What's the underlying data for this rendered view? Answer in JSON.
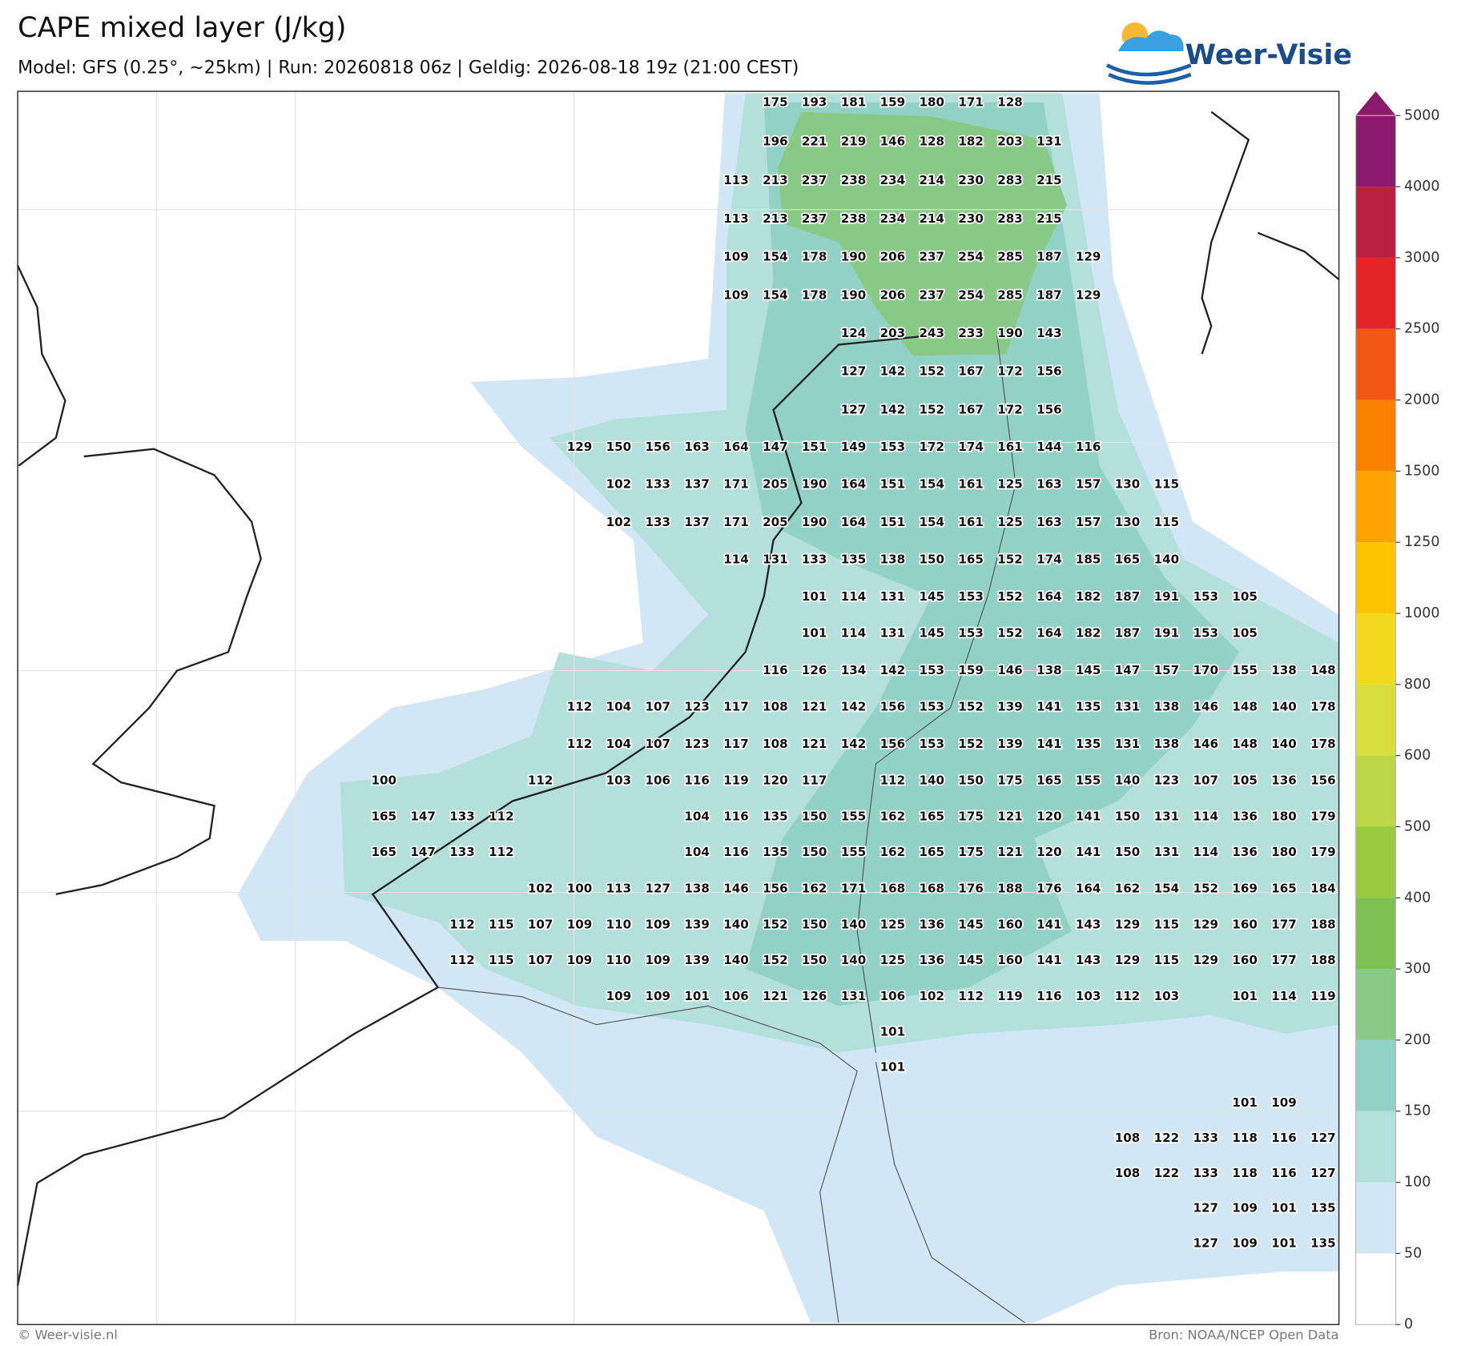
{
  "header": {
    "title": "CAPE mixed layer (J/kg)",
    "subtitle": "Model: GFS (0.25°, ~25km)  |  Run: 20260818 06z  |  Geldig: 2026-08-18 19z (21:00 CEST)",
    "logo": "Weer-Visie"
  },
  "map": {
    "rows": [
      [
        null,
        null,
        null,
        null,
        null,
        null,
        null,
        null,
        null,
        null,
        175,
        193,
        181,
        159,
        180,
        171,
        128
      ],
      [
        null,
        null,
        null,
        null,
        null,
        null,
        null,
        null,
        null,
        null,
        196,
        221,
        219,
        146,
        128,
        182,
        203,
        131
      ],
      [
        null,
        null,
        null,
        null,
        null,
        null,
        null,
        null,
        null,
        113,
        213,
        237,
        238,
        234,
        214,
        230,
        283,
        215
      ],
      [
        null,
        null,
        null,
        null,
        null,
        null,
        null,
        null,
        null,
        113,
        213,
        237,
        238,
        234,
        214,
        230,
        283,
        215
      ],
      [
        null,
        null,
        null,
        null,
        null,
        null,
        null,
        null,
        null,
        109,
        154,
        178,
        190,
        206,
        237,
        254,
        285,
        187,
        129
      ],
      [
        null,
        null,
        null,
        null,
        null,
        null,
        null,
        null,
        null,
        109,
        154,
        178,
        190,
        206,
        237,
        254,
        285,
        187,
        129
      ],
      [
        null,
        null,
        null,
        null,
        null,
        null,
        null,
        null,
        null,
        null,
        null,
        null,
        124,
        203,
        243,
        233,
        190,
        143
      ],
      [
        null,
        null,
        null,
        null,
        null,
        null,
        null,
        null,
        null,
        null,
        null,
        null,
        127,
        142,
        152,
        167,
        172,
        156
      ],
      [
        null,
        null,
        null,
        null,
        null,
        null,
        null,
        null,
        null,
        null,
        null,
        null,
        127,
        142,
        152,
        167,
        172,
        156
      ],
      [
        null,
        null,
        null,
        null,
        null,
        129,
        150,
        156,
        163,
        164,
        147,
        151,
        149,
        153,
        172,
        174,
        161,
        144,
        116
      ],
      [
        null,
        null,
        null,
        null,
        null,
        null,
        102,
        133,
        137,
        171,
        205,
        190,
        164,
        151,
        154,
        161,
        125,
        163,
        157,
        130,
        115
      ],
      [
        null,
        null,
        null,
        null,
        null,
        null,
        102,
        133,
        137,
        171,
        205,
        190,
        164,
        151,
        154,
        161,
        125,
        163,
        157,
        130,
        115
      ],
      [
        null,
        null,
        null,
        null,
        null,
        null,
        null,
        null,
        null,
        114,
        131,
        133,
        135,
        138,
        150,
        165,
        152,
        174,
        185,
        165,
        140
      ],
      [
        null,
        null,
        null,
        null,
        null,
        null,
        null,
        null,
        null,
        null,
        null,
        101,
        114,
        131,
        145,
        153,
        152,
        164,
        182,
        187,
        191,
        153,
        105
      ],
      [
        null,
        null,
        null,
        null,
        null,
        null,
        null,
        null,
        null,
        null,
        null,
        101,
        114,
        131,
        145,
        153,
        152,
        164,
        182,
        187,
        191,
        153,
        105
      ],
      [
        null,
        null,
        null,
        null,
        null,
        null,
        null,
        null,
        null,
        null,
        116,
        126,
        134,
        142,
        153,
        159,
        146,
        138,
        145,
        147,
        157,
        170,
        155,
        138,
        148
      ],
      [
        null,
        null,
        null,
        null,
        null,
        112,
        104,
        107,
        123,
        117,
        108,
        121,
        142,
        156,
        153,
        152,
        139,
        141,
        135,
        131,
        138,
        146,
        148,
        140,
        178
      ],
      [
        null,
        null,
        null,
        null,
        null,
        112,
        104,
        107,
        123,
        117,
        108,
        121,
        142,
        156,
        153,
        152,
        139,
        141,
        135,
        131,
        138,
        146,
        148,
        140,
        178
      ],
      [
        100,
        null,
        null,
        null,
        112,
        null,
        103,
        106,
        116,
        119,
        120,
        117,
        null,
        112,
        140,
        150,
        175,
        165,
        155,
        140,
        123,
        107,
        105,
        136,
        156
      ],
      [
        165,
        147,
        133,
        112,
        null,
        null,
        null,
        null,
        104,
        116,
        135,
        150,
        155,
        162,
        165,
        175,
        121,
        120,
        141,
        150,
        131,
        114,
        136,
        180,
        179
      ],
      [
        165,
        147,
        133,
        112,
        null,
        null,
        null,
        null,
        104,
        116,
        135,
        150,
        155,
        162,
        165,
        175,
        121,
        120,
        141,
        150,
        131,
        114,
        136,
        180,
        179
      ],
      [
        null,
        null,
        null,
        null,
        102,
        100,
        113,
        127,
        138,
        146,
        156,
        162,
        171,
        168,
        168,
        176,
        188,
        176,
        164,
        162,
        154,
        152,
        169,
        165,
        184
      ],
      [
        null,
        null,
        112,
        115,
        107,
        109,
        110,
        109,
        139,
        140,
        152,
        150,
        140,
        125,
        136,
        145,
        160,
        141,
        143,
        129,
        115,
        129,
        160,
        177,
        188
      ],
      [
        null,
        null,
        112,
        115,
        107,
        109,
        110,
        109,
        139,
        140,
        152,
        150,
        140,
        125,
        136,
        145,
        160,
        141,
        143,
        129,
        115,
        129,
        160,
        177,
        188
      ],
      [
        null,
        null,
        null,
        null,
        null,
        null,
        109,
        109,
        101,
        106,
        121,
        126,
        131,
        106,
        102,
        112,
        119,
        116,
        103,
        112,
        103,
        null,
        101,
        114,
        119
      ],
      [
        null,
        null,
        null,
        null,
        null,
        null,
        null,
        null,
        null,
        null,
        null,
        null,
        null,
        101
      ],
      [
        null,
        null,
        null,
        null,
        null,
        null,
        null,
        null,
        null,
        null,
        null,
        null,
        null,
        101
      ],
      [
        null,
        null,
        null,
        null,
        null,
        null,
        null,
        null,
        null,
        null,
        null,
        null,
        null,
        null,
        null,
        null,
        null,
        null,
        null,
        null,
        null,
        null,
        101,
        109
      ],
      [
        null,
        null,
        null,
        null,
        null,
        null,
        null,
        null,
        null,
        null,
        null,
        null,
        null,
        null,
        null,
        null,
        null,
        null,
        null,
        108,
        122,
        133,
        118,
        116,
        127
      ],
      [
        null,
        null,
        null,
        null,
        null,
        null,
        null,
        null,
        null,
        null,
        null,
        null,
        null,
        null,
        null,
        null,
        null,
        null,
        null,
        108,
        122,
        133,
        118,
        116,
        127
      ],
      [
        null,
        null,
        null,
        null,
        null,
        null,
        null,
        null,
        null,
        null,
        null,
        null,
        null,
        null,
        null,
        null,
        null,
        null,
        null,
        null,
        null,
        127,
        109,
        101,
        135
      ],
      [
        null,
        null,
        null,
        null,
        null,
        null,
        null,
        null,
        null,
        null,
        null,
        null,
        null,
        null,
        null,
        null,
        null,
        null,
        null,
        null,
        null,
        127,
        109,
        101,
        135
      ]
    ]
  },
  "colorbar": {
    "ticks": [
      0,
      50,
      100,
      150,
      200,
      300,
      400,
      500,
      600,
      800,
      1000,
      1250,
      1500,
      2000,
      2500,
      3000,
      4000,
      5000
    ],
    "colors": [
      "#ffffff",
      "#d1e7f6",
      "#b4e0dc",
      "#92d1c5",
      "#88c985",
      "#7cc152",
      "#97ca3d",
      "#bcd646",
      "#d7de3e",
      "#f1d91d",
      "#fbc400",
      "#fba300",
      "#f98100",
      "#f25714",
      "#e32424",
      "#b81f40",
      "#8b1a6c",
      "#8b1a6c"
    ]
  },
  "footer": {
    "left": "© Weer-visie.nl",
    "right": "Bron: NOAA/NCEP Open Data"
  }
}
